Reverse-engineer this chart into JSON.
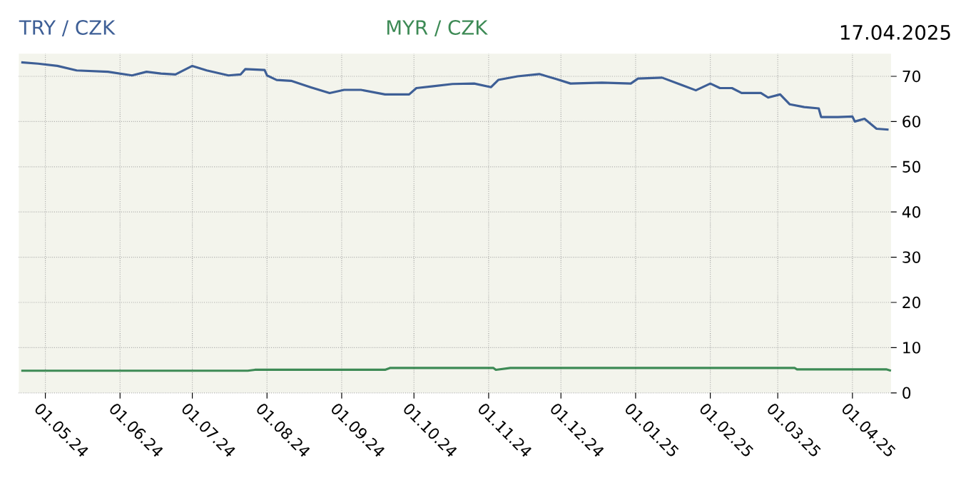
{
  "chart_data": {
    "type": "line",
    "annotations": [
      "17.04.2025"
    ],
    "legend": "top",
    "grid": true,
    "xlim": [
      "2024-04-20",
      "2025-04-17"
    ],
    "ylim": [
      0,
      75
    ],
    "xticks": [
      {
        "value": "2024-05-01",
        "label": "01.05.24"
      },
      {
        "value": "2024-06-01",
        "label": "01.06.24"
      },
      {
        "value": "2024-07-01",
        "label": "01.07.24"
      },
      {
        "value": "2024-08-01",
        "label": "01.08.24"
      },
      {
        "value": "2024-09-01",
        "label": "01.09.24"
      },
      {
        "value": "2024-10-01",
        "label": "01.10.24"
      },
      {
        "value": "2024-11-01",
        "label": "01.11.24"
      },
      {
        "value": "2024-12-01",
        "label": "01.12.24"
      },
      {
        "value": "2025-01-01",
        "label": "01.01.25"
      },
      {
        "value": "2025-02-01",
        "label": "01.02.25"
      },
      {
        "value": "2025-03-01",
        "label": "01.03.25"
      },
      {
        "value": "2025-04-01",
        "label": "01.04.25"
      }
    ],
    "yticks": [
      0,
      10,
      20,
      30,
      40,
      50,
      60,
      70
    ],
    "series": [
      {
        "name": "TRY / CZK",
        "color": "#3e5f96",
        "x": [
          "2024-04-21",
          "2024-04-28",
          "2024-05-06",
          "2024-05-14",
          "2024-05-27",
          "2024-06-06",
          "2024-06-12",
          "2024-06-18",
          "2024-06-24",
          "2024-07-01",
          "2024-07-07",
          "2024-07-16",
          "2024-07-21",
          "2024-07-23",
          "2024-07-31",
          "2024-08-01",
          "2024-08-05",
          "2024-08-11",
          "2024-08-19",
          "2024-08-27",
          "2024-09-02",
          "2024-09-09",
          "2024-09-19",
          "2024-09-29",
          "2024-10-02",
          "2024-10-09",
          "2024-10-17",
          "2024-10-26",
          "2024-11-02",
          "2024-11-05",
          "2024-11-13",
          "2024-11-22",
          "2024-11-29",
          "2024-12-05",
          "2024-12-18",
          "2024-12-30",
          "2025-01-02",
          "2025-01-12",
          "2025-01-20",
          "2025-01-26",
          "2025-02-01",
          "2025-02-05",
          "2025-02-10",
          "2025-02-14",
          "2025-02-22",
          "2025-02-25",
          "2025-03-02",
          "2025-03-06",
          "2025-03-12",
          "2025-03-18",
          "2025-03-19",
          "2025-03-26",
          "2025-04-01",
          "2025-04-02",
          "2025-04-06",
          "2025-04-11",
          "2025-04-16"
        ],
        "values": [
          73.1,
          72.8,
          72.3,
          71.3,
          71.0,
          70.2,
          71.0,
          70.6,
          70.4,
          72.3,
          71.3,
          70.2,
          70.4,
          71.6,
          71.4,
          70.2,
          69.2,
          69.0,
          67.6,
          66.3,
          67.0,
          67.0,
          66.0,
          66.0,
          67.4,
          67.8,
          68.3,
          68.4,
          67.6,
          69.2,
          70.0,
          70.5,
          69.4,
          68.4,
          68.6,
          68.4,
          69.5,
          69.7,
          68.1,
          66.9,
          68.4,
          67.4,
          67.4,
          66.3,
          66.3,
          65.3,
          66.0,
          63.8,
          63.2,
          62.9,
          61.0,
          61.0,
          61.1,
          60.0,
          60.6,
          58.4,
          58.2
        ]
      },
      {
        "name": "MYR / CZK",
        "color": "#3d8a55",
        "x": [
          "2024-04-21",
          "2024-07-24",
          "2024-07-27",
          "2024-09-19",
          "2024-09-21",
          "2024-11-03",
          "2024-11-04",
          "2024-11-10",
          "2025-03-08",
          "2025-03-09",
          "2025-04-15",
          "2025-04-17"
        ],
        "values": [
          4.9,
          4.9,
          5.1,
          5.1,
          5.5,
          5.5,
          5.1,
          5.5,
          5.5,
          5.2,
          5.2,
          4.9
        ]
      }
    ]
  }
}
